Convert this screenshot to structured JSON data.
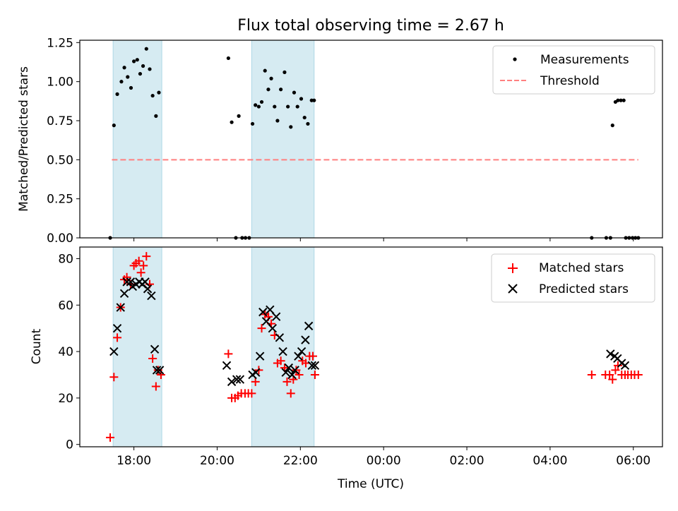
{
  "title": "Flux total observing time = 2.67 h",
  "colors": {
    "matched": "#ff0000",
    "predicted": "#000000",
    "measurement": "#000000",
    "threshold": "#ff7f7f",
    "span": "#add8e6"
  },
  "chart_data": [
    {
      "type": "scatter",
      "panel": "top",
      "xlabel": "",
      "ylabel": "Matched/Predicted stars",
      "x_units": "hours since 00:00 UTC of first night",
      "xlim": [
        16.7,
        30.7
      ],
      "ylim": [
        0,
        1.265
      ],
      "yticks": [
        0,
        0.25,
        0.5,
        0.75,
        1.0,
        1.25
      ],
      "ytick_labels": [
        "0.00",
        "0.25",
        "0.50",
        "0.75",
        "1.00",
        "1.25"
      ],
      "shaded_spans": [
        [
          17.5,
          18.67
        ],
        [
          20.83,
          22.33
        ]
      ],
      "threshold": {
        "name": "Threshold",
        "y": 0.5,
        "x_range": [
          17.47,
          30.12
        ]
      },
      "legend": {
        "position": "top-right",
        "entries": [
          "Measurements",
          "Threshold"
        ]
      },
      "series": [
        {
          "name": "Measurements",
          "x": [
            17.43,
            17.52,
            17.6,
            17.7,
            17.77,
            17.85,
            17.93,
            18.0,
            18.08,
            18.15,
            18.22,
            18.3,
            18.38,
            18.45,
            18.53,
            18.6,
            20.27,
            20.35,
            20.45,
            20.52,
            20.6,
            20.68,
            20.77,
            20.85,
            20.92,
            21.0,
            21.07,
            21.15,
            21.23,
            21.3,
            21.38,
            21.45,
            21.53,
            21.62,
            21.7,
            21.77,
            21.85,
            21.93,
            22.02,
            22.1,
            22.18,
            22.27,
            22.33,
            29.0,
            29.35,
            29.45,
            29.5,
            29.57,
            29.63,
            29.7,
            29.77,
            29.82,
            29.9,
            29.98,
            30.05,
            30.12
          ],
          "y": [
            0.0,
            0.72,
            0.92,
            1.0,
            1.09,
            1.03,
            0.96,
            1.13,
            1.14,
            1.05,
            1.1,
            1.21,
            1.08,
            0.91,
            0.78,
            0.93,
            1.15,
            0.74,
            0.0,
            0.78,
            0.0,
            0.0,
            0.0,
            0.73,
            0.85,
            0.84,
            0.87,
            1.07,
            0.95,
            1.02,
            0.84,
            0.75,
            0.95,
            1.06,
            0.84,
            0.71,
            0.93,
            0.84,
            0.89,
            0.77,
            0.73,
            0.88,
            0.88,
            0.0,
            0.0,
            0.0,
            0.72,
            0.87,
            0.88,
            0.88,
            0.88,
            0.0,
            0.0,
            0.0,
            0.0,
            0.0
          ]
        }
      ]
    },
    {
      "type": "scatter",
      "panel": "bottom",
      "xlabel": "Time (UTC)",
      "ylabel": "Count",
      "x_units": "hours since 00:00 UTC of first night",
      "xlim": [
        16.7,
        30.7
      ],
      "ylim": [
        -1,
        85
      ],
      "yticks": [
        0,
        20,
        40,
        60,
        80
      ],
      "ytick_labels": [
        "0",
        "20",
        "40",
        "60",
        "80"
      ],
      "xticks": [
        18,
        20,
        22,
        24,
        26,
        28,
        30
      ],
      "xtick_labels": [
        "18:00",
        "20:00",
        "22:00",
        "00:00",
        "02:00",
        "04:00",
        "06:00"
      ],
      "shaded_spans": [
        [
          17.5,
          18.67
        ],
        [
          20.83,
          22.33
        ]
      ],
      "legend": {
        "position": "top-right",
        "entries": [
          "Matched stars",
          "Predicted stars"
        ]
      },
      "series": [
        {
          "name": "Matched stars",
          "marker": "plus",
          "x": [
            17.43,
            17.52,
            17.6,
            17.68,
            17.77,
            17.83,
            17.92,
            18.0,
            18.05,
            18.12,
            18.17,
            18.23,
            18.3,
            18.38,
            18.45,
            18.53,
            18.58,
            18.65,
            20.27,
            20.35,
            20.43,
            20.5,
            20.58,
            20.67,
            20.75,
            20.83,
            20.92,
            21.0,
            21.07,
            21.15,
            21.23,
            21.3,
            21.38,
            21.45,
            21.53,
            21.62,
            21.68,
            21.77,
            21.83,
            21.9,
            21.97,
            22.05,
            22.13,
            22.22,
            22.3,
            22.35,
            29.0,
            29.33,
            29.43,
            29.5,
            29.57,
            29.63,
            29.72,
            29.8,
            29.87,
            29.95,
            30.03,
            30.12
          ],
          "y": [
            3,
            29,
            46,
            59,
            71,
            72,
            69,
            77,
            78,
            79,
            74,
            77,
            81,
            69,
            37,
            25,
            32,
            30,
            39,
            20,
            20,
            21,
            22,
            22,
            22,
            22,
            27,
            32,
            50,
            56,
            55,
            52,
            47,
            35,
            36,
            33,
            27,
            22,
            28,
            32,
            30,
            36,
            35,
            38,
            38,
            30,
            30,
            30,
            30,
            28,
            32,
            34,
            30,
            30,
            30,
            30,
            30,
            30
          ]
        },
        {
          "name": "Predicted stars",
          "marker": "x",
          "x": [
            17.52,
            17.6,
            17.68,
            17.77,
            17.83,
            17.92,
            17.97,
            18.05,
            18.13,
            18.2,
            18.27,
            18.33,
            18.42,
            18.5,
            18.55,
            18.62,
            20.23,
            20.35,
            20.47,
            20.55,
            20.85,
            20.93,
            21.03,
            21.1,
            21.18,
            21.27,
            21.33,
            21.42,
            21.5,
            21.58,
            21.65,
            21.72,
            21.8,
            21.87,
            21.95,
            22.03,
            22.12,
            22.2,
            22.28,
            22.35,
            29.45,
            29.55,
            29.62,
            29.72,
            29.8
          ],
          "y": [
            40,
            50,
            59,
            65,
            70,
            70,
            68,
            69,
            70,
            69,
            70,
            67,
            64,
            41,
            32,
            32,
            34,
            27,
            28,
            28,
            30,
            31,
            38,
            57,
            53,
            58,
            50,
            55,
            46,
            40,
            31,
            33,
            30,
            32,
            38,
            40,
            45,
            51,
            34,
            34,
            39,
            38,
            37,
            35,
            34
          ]
        }
      ]
    }
  ]
}
